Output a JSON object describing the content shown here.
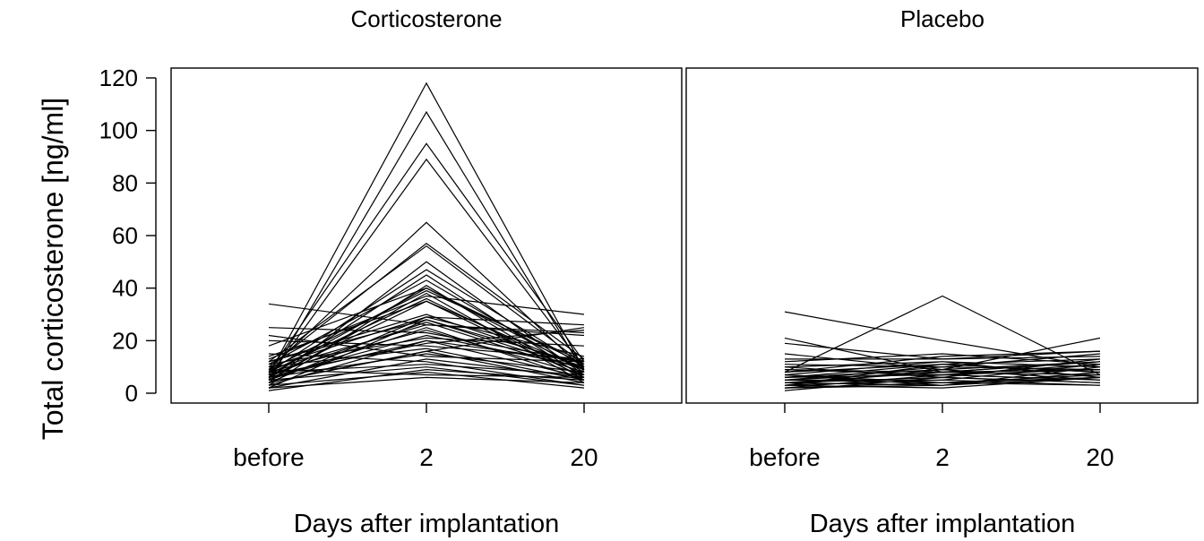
{
  "chart_data": {
    "type": "line",
    "ylabel": "Total corticosterone [ng/ml]",
    "xlabel": "Days after implantation",
    "x_categories": [
      "before",
      "2",
      "20"
    ],
    "ylim": [
      0,
      120
    ],
    "yticks": [
      0,
      20,
      40,
      60,
      80,
      100,
      120
    ],
    "grid": false,
    "panels": [
      {
        "title": "Corticosterone",
        "series": [
          [
            7,
            118,
            9
          ],
          [
            5,
            107,
            8
          ],
          [
            8,
            95,
            12
          ],
          [
            6,
            89,
            10
          ],
          [
            9,
            65,
            9
          ],
          [
            10,
            57,
            13
          ],
          [
            12,
            56,
            11
          ],
          [
            4,
            50,
            7
          ],
          [
            8,
            47,
            10
          ],
          [
            6,
            45,
            6
          ],
          [
            11,
            43,
            8
          ],
          [
            3,
            41,
            5
          ],
          [
            7,
            40,
            9
          ],
          [
            9,
            39,
            12
          ],
          [
            5,
            38,
            4
          ],
          [
            13,
            37,
            30
          ],
          [
            8,
            36,
            7
          ],
          [
            6,
            35,
            6
          ],
          [
            10,
            29,
            26
          ],
          [
            4,
            29,
            14
          ],
          [
            12,
            28,
            11
          ],
          [
            2,
            28,
            9
          ],
          [
            7,
            27,
            8
          ],
          [
            9,
            26,
            23
          ],
          [
            34,
            26,
            22
          ],
          [
            5,
            25,
            5
          ],
          [
            8,
            24,
            7
          ],
          [
            25,
            23,
            12
          ],
          [
            6,
            22,
            10
          ],
          [
            11,
            21,
            18
          ],
          [
            3,
            20,
            6
          ],
          [
            7,
            19,
            24
          ],
          [
            20,
            18,
            13
          ],
          [
            10,
            17,
            5
          ],
          [
            4,
            16,
            4
          ],
          [
            6,
            15,
            8
          ],
          [
            22,
            14,
            12
          ],
          [
            2,
            13,
            6
          ],
          [
            15,
            12,
            3
          ],
          [
            8,
            11,
            7
          ],
          [
            5,
            10,
            3
          ],
          [
            1,
            9,
            5
          ],
          [
            3,
            8,
            2
          ],
          [
            9,
            7,
            6
          ],
          [
            2,
            6,
            4
          ],
          [
            4,
            16,
            25
          ],
          [
            6,
            20,
            12
          ],
          [
            12,
            30,
            10
          ],
          [
            14,
            35,
            9
          ],
          [
            18,
            40,
            11
          ]
        ]
      },
      {
        "title": "Placebo",
        "series": [
          [
            31,
            20,
            10
          ],
          [
            21,
            8,
            12
          ],
          [
            19,
            13,
            16
          ],
          [
            15,
            9,
            21
          ],
          [
            13,
            13,
            14
          ],
          [
            12,
            15,
            11
          ],
          [
            11,
            10,
            15
          ],
          [
            10,
            6,
            13
          ],
          [
            9,
            8,
            9
          ],
          [
            8,
            37,
            7
          ],
          [
            8,
            11,
            8
          ],
          [
            7,
            12,
            10
          ],
          [
            7,
            3,
            6
          ],
          [
            6,
            9,
            12
          ],
          [
            6,
            7,
            5
          ],
          [
            5,
            5,
            11
          ],
          [
            5,
            10,
            9
          ],
          [
            5,
            4,
            6
          ],
          [
            4,
            8,
            7
          ],
          [
            4,
            6,
            4
          ],
          [
            4,
            3,
            8
          ],
          [
            3,
            9,
            5
          ],
          [
            3,
            5,
            3
          ],
          [
            3,
            2,
            6
          ],
          [
            2,
            7,
            9
          ],
          [
            2,
            4,
            3
          ],
          [
            2,
            3,
            10
          ],
          [
            1,
            6,
            4
          ],
          [
            6,
            11,
            13
          ],
          [
            8,
            14,
            16
          ],
          [
            9,
            7,
            11
          ],
          [
            10,
            12,
            6
          ],
          [
            7,
            4,
            7
          ],
          [
            5,
            8,
            12
          ],
          [
            3,
            11,
            8
          ]
        ]
      }
    ]
  }
}
